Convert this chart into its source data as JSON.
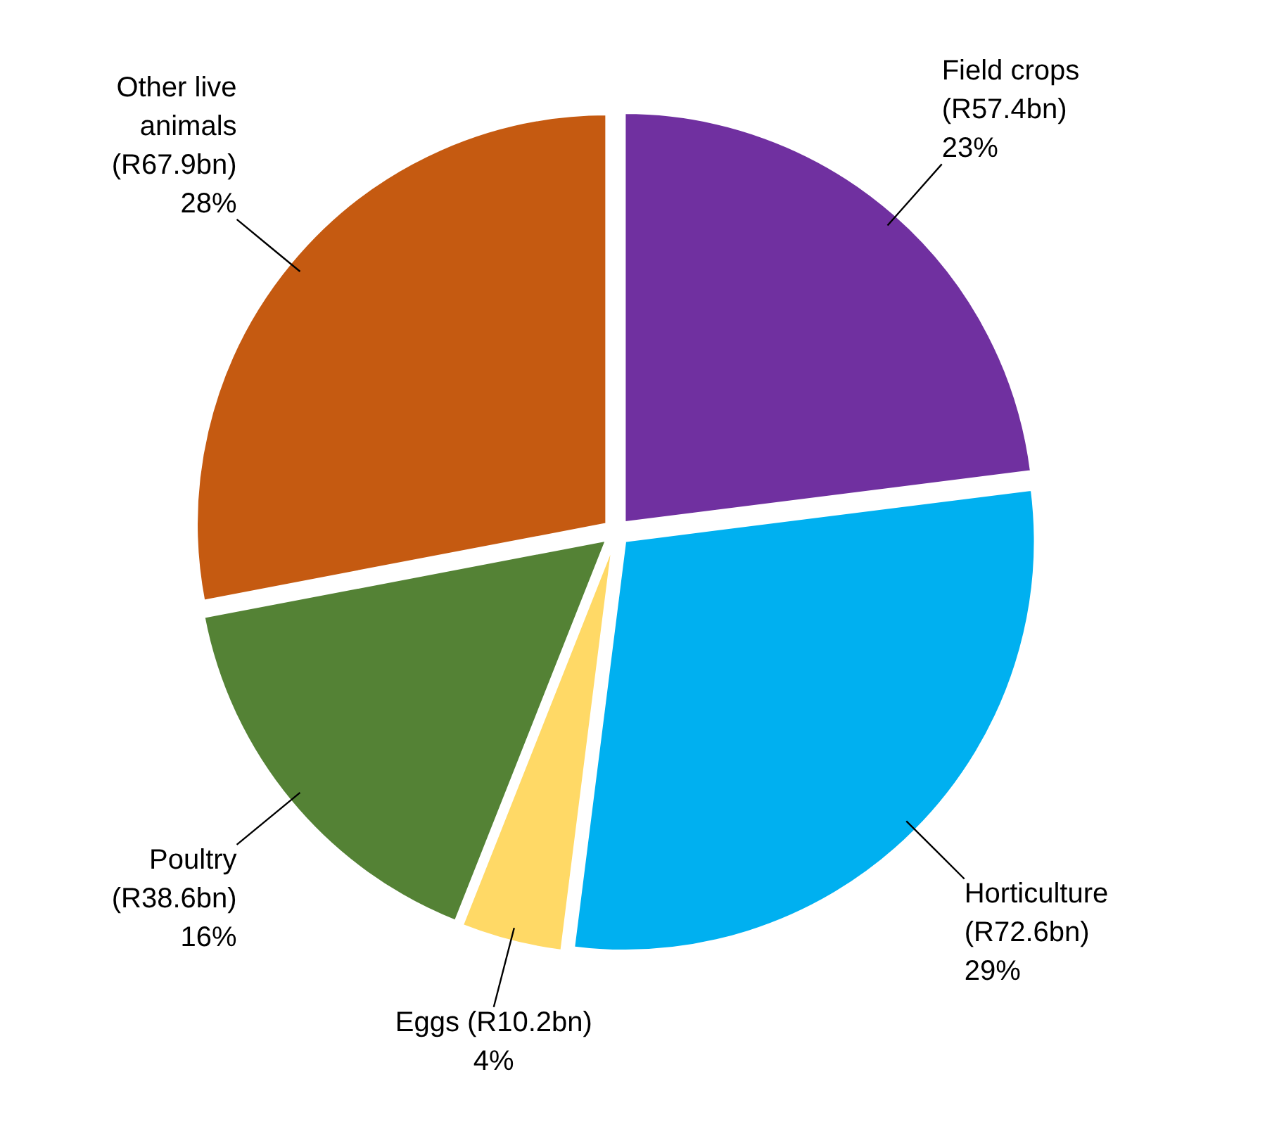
{
  "chart_data": {
    "type": "pie",
    "categories": [
      "Field crops (R57.4bn)",
      "Horticulture (R72.6bn)",
      "Eggs (R10.2bn)",
      "Poultry (R38.6bn)",
      "Other live animals (R67.9bn)"
    ],
    "values": [
      23,
      29,
      4,
      16,
      28
    ],
    "colors": [
      "#7030a0",
      "#00b0f0",
      "#ffd966",
      "#548235",
      "#c55a11"
    ],
    "value_labels": [
      "23%",
      "29%",
      "4%",
      "16%",
      "28%"
    ]
  }
}
